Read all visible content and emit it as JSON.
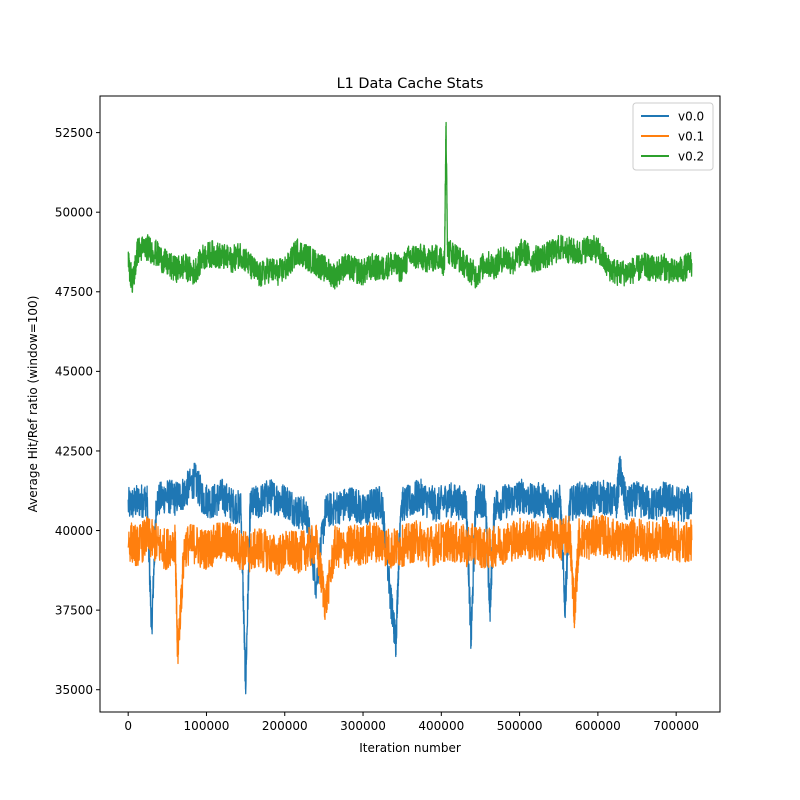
{
  "chart_data": {
    "type": "line",
    "title": "L1 Data Cache Stats",
    "xlabel": "Iteration number",
    "ylabel": "Average Hit/Ref ratio (window=100)",
    "xlim": [
      -36000,
      756000
    ],
    "ylim": [
      34300,
      53650
    ],
    "xticks": [
      0,
      100000,
      200000,
      300000,
      400000,
      500000,
      600000,
      700000
    ],
    "xtick_labels": [
      "0",
      "100000",
      "200000",
      "300000",
      "400000",
      "500000",
      "600000",
      "700000"
    ],
    "yticks": [
      35000,
      37500,
      40000,
      42500,
      45000,
      47500,
      50000,
      52500
    ],
    "ytick_labels": [
      "35000",
      "37500",
      "40000",
      "42500",
      "45000",
      "47500",
      "50000",
      "52500"
    ],
    "grid": false,
    "legend_position": "top-right",
    "colors": [
      "#1f77b4",
      "#ff7f0e",
      "#2ca02c"
    ],
    "series": [
      {
        "name": "v0.0",
        "color": "#1f77b4",
        "x": [
          0,
          12000,
          24000,
          30000,
          36000,
          48000,
          60000,
          72000,
          85000,
          96000,
          108000,
          120000,
          132000,
          144000,
          150000,
          156000,
          168000,
          180000,
          192000,
          204000,
          216000,
          228000,
          240000,
          252000,
          264000,
          276000,
          288000,
          300000,
          312000,
          324000,
          336000,
          342000,
          348000,
          360000,
          372000,
          384000,
          396000,
          408000,
          420000,
          432000,
          438000,
          444000,
          456000,
          462000,
          468000,
          480000,
          492000,
          504000,
          516000,
          528000,
          540000,
          552000,
          558000,
          564000,
          576000,
          588000,
          600000,
          612000,
          624000,
          628000,
          636000,
          648000,
          660000,
          672000,
          684000,
          696000,
          708000,
          720000
        ],
        "y": [
          40800,
          40900,
          41000,
          36900,
          40900,
          41100,
          41000,
          41200,
          41600,
          41000,
          40900,
          41100,
          40800,
          40700,
          35100,
          40800,
          40900,
          41100,
          41000,
          40900,
          40600,
          40500,
          38300,
          40600,
          40700,
          40800,
          40900,
          40600,
          40800,
          40900,
          37700,
          36500,
          40800,
          40900,
          41100,
          40900,
          40800,
          41000,
          40900,
          40800,
          36500,
          40900,
          41000,
          37500,
          40800,
          40900,
          41000,
          41100,
          40900,
          41000,
          40800,
          40900,
          37600,
          40800,
          41000,
          40900,
          41100,
          41000,
          40900,
          41900,
          40800,
          41000,
          40900,
          40800,
          41000,
          40900,
          40800,
          40900
        ]
      },
      {
        "name": "v0.1",
        "color": "#ff7f0e",
        "x": [
          0,
          12000,
          24000,
          36000,
          48000,
          60000,
          63000,
          72000,
          84000,
          96000,
          108000,
          120000,
          132000,
          144000,
          156000,
          168000,
          180000,
          192000,
          204000,
          216000,
          228000,
          240000,
          252000,
          264000,
          276000,
          288000,
          300000,
          312000,
          324000,
          336000,
          348000,
          360000,
          372000,
          384000,
          396000,
          408000,
          420000,
          432000,
          444000,
          456000,
          468000,
          480000,
          492000,
          504000,
          516000,
          528000,
          540000,
          552000,
          564000,
          570000,
          576000,
          588000,
          600000,
          612000,
          624000,
          636000,
          648000,
          660000,
          672000,
          684000,
          696000,
          708000,
          720000
        ],
        "y": [
          39700,
          39500,
          39800,
          39600,
          39400,
          39700,
          36100,
          39500,
          39600,
          39400,
          39500,
          39700,
          39600,
          39400,
          39300,
          39500,
          39300,
          39200,
          39400,
          39300,
          39400,
          39600,
          37700,
          39500,
          39400,
          39600,
          39500,
          39700,
          39600,
          39400,
          39500,
          39600,
          39700,
          39500,
          39600,
          39700,
          39600,
          39500,
          39600,
          39400,
          39500,
          39600,
          39700,
          39800,
          39700,
          39600,
          39800,
          39700,
          39900,
          37500,
          39800,
          39700,
          39900,
          39800,
          39700,
          39600,
          39800,
          39700,
          39600,
          39800,
          39700,
          39600,
          39700
        ]
      },
      {
        "name": "v0.2",
        "color": "#2ca02c",
        "x": [
          0,
          6000,
          12000,
          24000,
          36000,
          48000,
          60000,
          72000,
          84000,
          96000,
          108000,
          120000,
          132000,
          144000,
          156000,
          168000,
          180000,
          192000,
          204000,
          216000,
          228000,
          240000,
          252000,
          264000,
          276000,
          288000,
          300000,
          312000,
          324000,
          336000,
          348000,
          360000,
          372000,
          384000,
          396000,
          404000,
          406000,
          408000,
          420000,
          432000,
          444000,
          456000,
          468000,
          480000,
          492000,
          504000,
          516000,
          528000,
          540000,
          552000,
          564000,
          576000,
          588000,
          600000,
          612000,
          624000,
          636000,
          648000,
          660000,
          672000,
          684000,
          696000,
          708000,
          720000
        ],
        "y": [
          48400,
          47800,
          48800,
          48900,
          48700,
          48400,
          48200,
          48300,
          48100,
          48600,
          48700,
          48600,
          48500,
          48700,
          48300,
          48000,
          48200,
          48100,
          48300,
          48800,
          48600,
          48400,
          48200,
          48000,
          48300,
          48200,
          48100,
          48300,
          48200,
          48400,
          48200,
          48600,
          48600,
          48500,
          48600,
          48400,
          52700,
          48800,
          48600,
          48300,
          48000,
          48400,
          48300,
          48600,
          48400,
          48800,
          48500,
          48600,
          48700,
          48900,
          48800,
          48700,
          48900,
          48800,
          48300,
          48100,
          48100,
          48200,
          48300,
          48200,
          48300,
          48100,
          48200,
          48400
        ]
      }
    ]
  }
}
